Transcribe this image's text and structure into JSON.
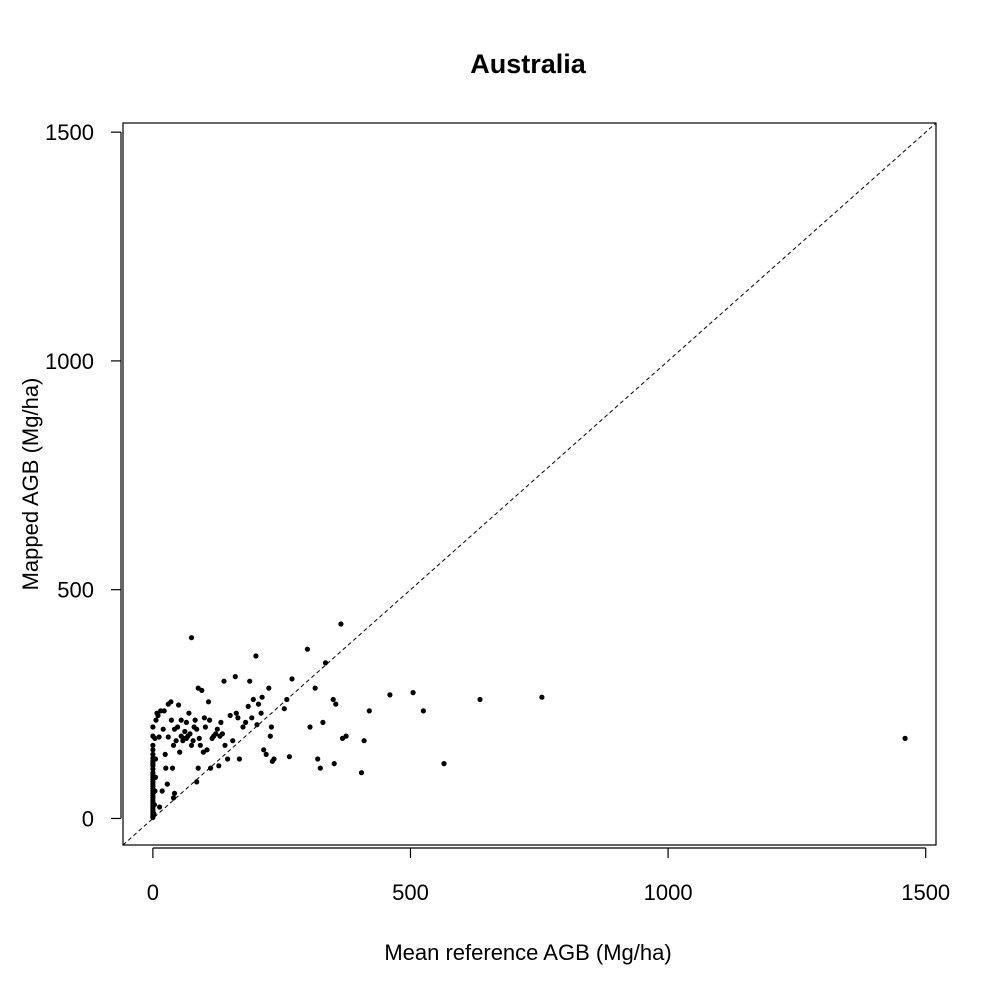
{
  "chart_data": {
    "type": "scatter",
    "title": "Australia",
    "xlabel": "Mean reference AGB (Mg/ha)",
    "ylabel": "Mapped AGB (Mg/ha)",
    "xlim": [
      -58,
      1520
    ],
    "ylim": [
      -58,
      1520
    ],
    "xticks": [
      0,
      500,
      1000,
      1500
    ],
    "yticks": [
      0,
      500,
      1000,
      1500
    ],
    "xtick_labels": [
      "0",
      "500",
      "1000",
      "1500"
    ],
    "ytick_labels": [
      "0",
      "500",
      "1000",
      "1500"
    ],
    "grid": false,
    "legend": "none",
    "reference_line": "y = x (dashed)",
    "marker_color": "#000000",
    "points": [
      [
        0,
        2
      ],
      [
        0,
        5
      ],
      [
        0,
        8
      ],
      [
        0,
        12
      ],
      [
        0,
        16
      ],
      [
        0,
        20
      ],
      [
        0,
        25
      ],
      [
        0,
        30
      ],
      [
        0,
        35
      ],
      [
        0,
        40
      ],
      [
        0,
        45
      ],
      [
        0,
        50
      ],
      [
        0,
        55
      ],
      [
        0,
        60
      ],
      [
        0,
        65
      ],
      [
        0,
        70
      ],
      [
        0,
        75
      ],
      [
        0,
        80
      ],
      [
        0,
        85
      ],
      [
        0,
        90
      ],
      [
        0,
        95
      ],
      [
        0,
        100
      ],
      [
        0,
        108
      ],
      [
        0,
        115
      ],
      [
        0,
        120
      ],
      [
        0,
        125
      ],
      [
        0,
        132
      ],
      [
        0,
        140
      ],
      [
        0,
        150
      ],
      [
        0,
        160
      ],
      [
        0,
        180
      ],
      [
        0,
        200
      ],
      [
        2,
        10
      ],
      [
        3,
        30
      ],
      [
        4,
        60
      ],
      [
        5,
        90
      ],
      [
        5,
        130
      ],
      [
        4,
        175
      ],
      [
        6,
        215
      ],
      [
        8,
        230
      ],
      [
        10,
        225
      ],
      [
        12,
        178
      ],
      [
        13,
        25
      ],
      [
        15,
        235
      ],
      [
        18,
        60
      ],
      [
        20,
        195
      ],
      [
        22,
        235
      ],
      [
        24,
        140
      ],
      [
        25,
        110
      ],
      [
        28,
        75
      ],
      [
        30,
        178
      ],
      [
        30,
        250
      ],
      [
        35,
        255
      ],
      [
        36,
        215
      ],
      [
        38,
        110
      ],
      [
        40,
        45
      ],
      [
        40,
        160
      ],
      [
        42,
        55
      ],
      [
        42,
        195
      ],
      [
        45,
        170
      ],
      [
        48,
        200
      ],
      [
        50,
        248
      ],
      [
        52,
        145
      ],
      [
        55,
        180
      ],
      [
        55,
        215
      ],
      [
        58,
        170
      ],
      [
        60,
        175
      ],
      [
        62,
        190
      ],
      [
        65,
        210
      ],
      [
        65,
        175
      ],
      [
        68,
        180
      ],
      [
        70,
        230
      ],
      [
        72,
        185
      ],
      [
        75,
        395
      ],
      [
        75,
        160
      ],
      [
        78,
        170
      ],
      [
        80,
        200
      ],
      [
        82,
        215
      ],
      [
        85,
        80
      ],
      [
        85,
        195
      ],
      [
        88,
        285
      ],
      [
        88,
        110
      ],
      [
        90,
        175
      ],
      [
        92,
        160
      ],
      [
        95,
        280
      ],
      [
        98,
        145
      ],
      [
        100,
        220
      ],
      [
        102,
        200
      ],
      [
        105,
        150
      ],
      [
        108,
        255
      ],
      [
        110,
        215
      ],
      [
        112,
        110
      ],
      [
        115,
        175
      ],
      [
        118,
        180
      ],
      [
        122,
        185
      ],
      [
        125,
        195
      ],
      [
        128,
        115
      ],
      [
        130,
        180
      ],
      [
        132,
        210
      ],
      [
        135,
        185
      ],
      [
        138,
        300
      ],
      [
        140,
        160
      ],
      [
        145,
        130
      ],
      [
        150,
        225
      ],
      [
        155,
        170
      ],
      [
        160,
        310
      ],
      [
        162,
        230
      ],
      [
        165,
        220
      ],
      [
        168,
        130
      ],
      [
        175,
        200
      ],
      [
        180,
        210
      ],
      [
        185,
        245
      ],
      [
        188,
        300
      ],
      [
        192,
        220
      ],
      [
        195,
        260
      ],
      [
        200,
        355
      ],
      [
        202,
        205
      ],
      [
        205,
        250
      ],
      [
        210,
        230
      ],
      [
        212,
        265
      ],
      [
        215,
        150
      ],
      [
        220,
        140
      ],
      [
        225,
        285
      ],
      [
        228,
        180
      ],
      [
        230,
        200
      ],
      [
        232,
        125
      ],
      [
        235,
        130
      ],
      [
        255,
        240
      ],
      [
        260,
        260
      ],
      [
        265,
        135
      ],
      [
        270,
        305
      ],
      [
        300,
        370
      ],
      [
        305,
        200
      ],
      [
        315,
        285
      ],
      [
        320,
        130
      ],
      [
        325,
        110
      ],
      [
        330,
        210
      ],
      [
        335,
        340
      ],
      [
        350,
        260
      ],
      [
        352,
        120
      ],
      [
        355,
        250
      ],
      [
        365,
        425
      ],
      [
        368,
        175
      ],
      [
        375,
        180
      ],
      [
        405,
        100
      ],
      [
        410,
        170
      ],
      [
        420,
        235
      ],
      [
        460,
        270
      ],
      [
        505,
        275
      ],
      [
        525,
        235
      ],
      [
        565,
        120
      ],
      [
        635,
        260
      ],
      [
        755,
        265
      ],
      [
        1460,
        175
      ]
    ]
  }
}
